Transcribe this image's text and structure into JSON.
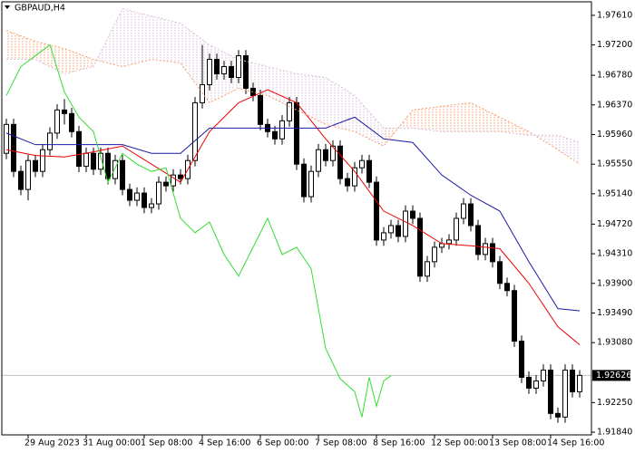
{
  "chart_data": {
    "type": "candlestick",
    "title": "GBPAUD,H4",
    "categories": [
      null,
      null,
      null,
      "29 Aug 2023",
      null,
      null,
      null,
      null,
      null,
      null,
      null,
      "31 Aug 00:00",
      null,
      null,
      null,
      null,
      null,
      null,
      null,
      "1 Sep 08:00",
      null,
      null,
      null,
      null,
      null,
      null,
      null,
      "4 Sep 16:00",
      null,
      null,
      null,
      null,
      null,
      null,
      null,
      "6 Sep 00:00",
      null,
      null,
      null,
      null,
      null,
      null,
      null,
      "7 Sep 08:00",
      null,
      null,
      null,
      null,
      null,
      null,
      null,
      "8 Sep 16:00",
      null,
      null,
      null,
      null,
      null,
      null,
      null,
      "12 Sep 00:00",
      null,
      null,
      null,
      null,
      null,
      null,
      null,
      "13 Sep 08:00",
      null,
      null,
      null,
      null,
      null,
      null,
      null,
      "14 Sep 16:00",
      null,
      null,
      null,
      null
    ],
    "open": [
      1.957,
      1.961,
      1.9545,
      1.952,
      1.956,
      1.9545,
      1.9575,
      1.9598,
      1.963,
      1.9625,
      1.96,
      1.9552,
      1.957,
      1.9548,
      1.957,
      1.9535,
      1.956,
      1.952,
      1.9505,
      1.9515,
      1.9495,
      1.95,
      1.953,
      1.9525,
      1.954,
      1.9535,
      1.956,
      1.964,
      1.9665,
      1.97,
      1.968,
      1.969,
      1.9675,
      1.9705,
      1.966,
      1.965,
      1.961,
      1.96,
      1.959,
      1.9615,
      1.964,
      1.9555,
      1.951,
      1.9545,
      1.9575,
      1.956,
      1.958,
      1.9535,
      1.9525,
      1.955,
      1.956,
      1.953,
      1.945,
      1.946,
      1.947,
      1.9455,
      1.949,
      1.948,
      1.94,
      1.942,
      1.944,
      1.9445,
      1.945,
      1.948,
      1.95,
      1.947,
      1.943,
      1.9445,
      1.942,
      1.939,
      1.938,
      1.931,
      1.926,
      1.9245,
      1.9255,
      1.927,
      1.921,
      1.9205,
      1.927,
      1.924
    ],
    "high": [
      1.9618,
      1.9618,
      1.9553,
      1.9568,
      1.9568,
      1.9583,
      1.9606,
      1.9638,
      1.9645,
      1.9633,
      1.9608,
      1.9578,
      1.9578,
      1.9578,
      1.9578,
      1.9568,
      1.9568,
      1.9528,
      1.9523,
      1.9523,
      1.9508,
      1.9538,
      1.9538,
      1.9548,
      1.9548,
      1.9568,
      1.9648,
      1.972,
      1.9708,
      1.9708,
      1.9698,
      1.9698,
      1.9713,
      1.9713,
      1.9668,
      1.9658,
      1.9618,
      1.9608,
      1.9623,
      1.9648,
      1.9648,
      1.9563,
      1.9553,
      1.9583,
      1.9583,
      1.9588,
      1.9588,
      1.9543,
      1.9558,
      1.9568,
      1.9568,
      1.9538,
      1.9468,
      1.9478,
      1.9478,
      1.9498,
      1.9498,
      1.9488,
      1.9428,
      1.9448,
      1.9453,
      1.9458,
      1.9488,
      1.9508,
      1.9508,
      1.9478,
      1.9453,
      1.9453,
      1.9428,
      1.9398,
      1.9388,
      1.9318,
      1.9268,
      1.9263,
      1.9278,
      1.9278,
      1.9218,
      1.9278,
      1.9278,
      1.927
    ],
    "low": [
      1.9562,
      1.9537,
      1.9512,
      1.9505,
      1.9537,
      1.9537,
      1.9567,
      1.959,
      1.961,
      1.9592,
      1.9544,
      1.9544,
      1.954,
      1.954,
      1.9527,
      1.9527,
      1.9512,
      1.9497,
      1.9497,
      1.9487,
      1.9487,
      1.9492,
      1.9517,
      1.9517,
      1.9527,
      1.9527,
      1.9552,
      1.9632,
      1.9657,
      1.9672,
      1.9672,
      1.9667,
      1.9667,
      1.9652,
      1.9642,
      1.9602,
      1.9592,
      1.9582,
      1.9582,
      1.9607,
      1.9547,
      1.9502,
      1.9502,
      1.9537,
      1.9552,
      1.9552,
      1.9527,
      1.9517,
      1.9517,
      1.9542,
      1.9522,
      1.9442,
      1.9442,
      1.9452,
      1.9447,
      1.9447,
      1.9472,
      1.9392,
      1.9392,
      1.9412,
      1.9432,
      1.9437,
      1.9442,
      1.9472,
      1.9462,
      1.9422,
      1.9422,
      1.9412,
      1.9382,
      1.9372,
      1.9302,
      1.9252,
      1.9237,
      1.9237,
      1.9247,
      1.9202,
      1.9197,
      1.9197,
      1.9232,
      1.9232
    ],
    "close": [
      1.961,
      1.9545,
      1.952,
      1.956,
      1.9545,
      1.9575,
      1.9598,
      1.963,
      1.9625,
      1.96,
      1.9552,
      1.957,
      1.9548,
      1.957,
      1.9535,
      1.956,
      1.952,
      1.9505,
      1.9515,
      1.9495,
      1.95,
      1.953,
      1.9525,
      1.954,
      1.9535,
      1.956,
      1.964,
      1.9665,
      1.97,
      1.968,
      1.969,
      1.9675,
      1.9705,
      1.966,
      1.965,
      1.961,
      1.96,
      1.959,
      1.9615,
      1.964,
      1.9555,
      1.951,
      1.9545,
      1.9575,
      1.956,
      1.958,
      1.9535,
      1.9525,
      1.955,
      1.956,
      1.953,
      1.945,
      1.946,
      1.947,
      1.9455,
      1.949,
      1.948,
      1.94,
      1.942,
      1.944,
      1.9445,
      1.945,
      1.948,
      1.95,
      1.947,
      1.943,
      1.9445,
      1.942,
      1.939,
      1.938,
      1.931,
      1.926,
      1.9245,
      1.9255,
      1.927,
      1.921,
      1.9205,
      1.927,
      1.924,
      1.92626
    ],
    "series": [
      {
        "color": "#ee0000",
        "line_style": "solid",
        "x": [
          0,
          4,
          8,
          12,
          16,
          20,
          24,
          28,
          32,
          36,
          40,
          44,
          48,
          52,
          56,
          60,
          64,
          68,
          72,
          76,
          79
        ],
        "values": [
          1.9575,
          1.9567,
          1.9565,
          1.9572,
          1.958,
          1.9555,
          1.953,
          1.96,
          1.964,
          1.9658,
          1.964,
          1.959,
          1.9545,
          1.949,
          1.947,
          1.9445,
          1.9442,
          1.9438,
          1.939,
          1.933,
          1.9305
        ]
      },
      {
        "color": "#1a1aa6",
        "line_style": "solid",
        "x": [
          0,
          4,
          8,
          12,
          16,
          20,
          24,
          28,
          32,
          36,
          40,
          44,
          48,
          52,
          56,
          60,
          64,
          68,
          72,
          76,
          79
        ],
        "values": [
          1.9598,
          1.9582,
          1.9582,
          1.9582,
          1.9582,
          1.957,
          1.957,
          1.9605,
          1.9605,
          1.9605,
          1.9605,
          1.9605,
          1.962,
          1.959,
          1.9585,
          1.954,
          1.9512,
          1.949,
          1.942,
          1.9355,
          1.9352
        ]
      },
      {
        "color": "#33dd33",
        "line_style": "solid",
        "x": [
          0,
          2,
          4,
          6,
          8,
          10,
          12,
          14,
          16,
          18,
          20,
          22,
          24,
          26,
          28,
          30,
          32,
          34,
          36,
          38,
          40,
          42,
          44,
          46,
          48,
          49,
          50,
          51,
          52,
          53
        ],
        "values": [
          1.965,
          1.969,
          1.9705,
          1.972,
          1.9655,
          1.962,
          1.96,
          1.953,
          1.957,
          1.9555,
          1.9545,
          1.955,
          1.948,
          1.946,
          1.9475,
          1.943,
          1.94,
          1.944,
          1.948,
          1.943,
          1.944,
          1.941,
          1.93,
          1.9258,
          1.924,
          1.9205,
          1.926,
          1.922,
          1.9255,
          1.9262
        ]
      },
      {
        "color": "#f4a070",
        "line_style": "dotted",
        "x": [
          0,
          4,
          8,
          12,
          16,
          20,
          24,
          28,
          32,
          36,
          40,
          44,
          48,
          52,
          56,
          60,
          64,
          68,
          72,
          76,
          79
        ],
        "values": [
          1.974,
          1.9725,
          1.9715,
          1.97,
          1.969,
          1.97,
          1.9695,
          1.964,
          1.966,
          1.965,
          1.963,
          1.961,
          1.96,
          1.958,
          1.963,
          1.9635,
          1.964,
          1.962,
          1.96,
          1.9575,
          1.9555
        ]
      },
      {
        "color": "#d8bfd8",
        "line_style": "dotted",
        "x": [
          0,
          4,
          8,
          12,
          16,
          20,
          24,
          28,
          32,
          36,
          40,
          44,
          48,
          52,
          56,
          60,
          64,
          68,
          72,
          76,
          79
        ],
        "values": [
          1.97,
          1.97,
          1.968,
          1.969,
          1.977,
          1.976,
          1.975,
          1.972,
          1.97,
          1.969,
          1.968,
          1.9675,
          1.965,
          1.9605,
          1.9605,
          1.96,
          1.96,
          1.96,
          1.9595,
          1.9595,
          1.9585
        ]
      }
    ],
    "last_price": 1.92626,
    "ylim": [
      1.97797,
      1.91803
    ],
    "yticks": [
      {
        "value": 1.9761,
        "label": "1.97610"
      },
      {
        "value": 1.972,
        "label": "1.97200"
      },
      {
        "value": 1.9678,
        "label": "1.96780"
      },
      {
        "value": 1.9637,
        "label": "1.96370"
      },
      {
        "value": 1.9596,
        "label": "1.95960"
      },
      {
        "value": 1.9555,
        "label": "1.95550"
      },
      {
        "value": 1.9514,
        "label": "1.95140"
      },
      {
        "value": 1.9472,
        "label": "1.94720"
      },
      {
        "value": 1.9431,
        "label": "1.94310"
      },
      {
        "value": 1.939,
        "label": "1.93900"
      },
      {
        "value": 1.9349,
        "label": "1.93490"
      },
      {
        "value": 1.9308,
        "label": "1.93080"
      },
      {
        "value": 1.9225,
        "label": "1.92250"
      },
      {
        "value": 1.9184,
        "label": "1.91840"
      }
    ],
    "grid": false
  }
}
